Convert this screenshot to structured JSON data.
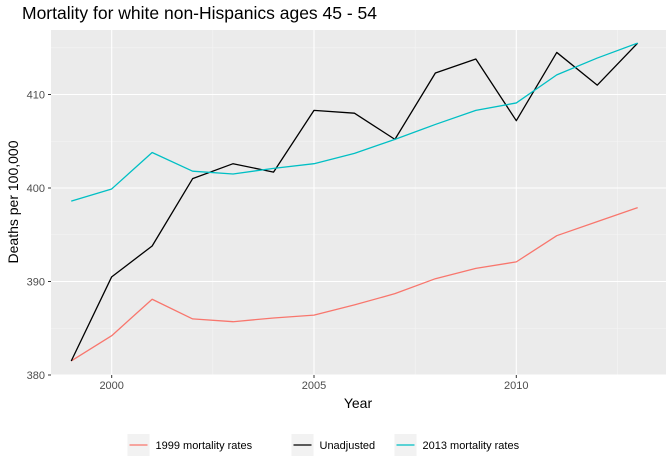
{
  "chart_data": {
    "type": "line",
    "title": "Mortality for white non-Hispanics ages 45 - 54",
    "xlabel": "Year",
    "ylabel": "Deaths per 100,000",
    "xlim": [
      1998.5,
      2013.7
    ],
    "ylim": [
      380,
      416.9
    ],
    "x_ticks": [
      2000,
      2005,
      2010
    ],
    "x_tick_labels": [
      "2000",
      "2005",
      "2010"
    ],
    "y_ticks": [
      380,
      390,
      400,
      410
    ],
    "y_tick_labels": [
      "380",
      "390",
      "400",
      "410"
    ],
    "grid": true,
    "legend_position": "bottom",
    "x": [
      1999,
      2000,
      2001,
      2002,
      2003,
      2004,
      2005,
      2006,
      2007,
      2008,
      2009,
      2010,
      2011,
      2012,
      2013
    ],
    "series": [
      {
        "name": "1999 mortality rates",
        "color": "#F8766D",
        "values": [
          381.5,
          384.2,
          388.1,
          386.0,
          385.7,
          386.1,
          386.4,
          387.5,
          388.7,
          390.3,
          391.4,
          392.1,
          394.9,
          396.4,
          397.9
        ]
      },
      {
        "name": "Unadjusted",
        "color": "#000000",
        "values": [
          381.5,
          390.5,
          393.8,
          401.0,
          402.6,
          401.7,
          408.3,
          408.0,
          405.2,
          412.3,
          413.8,
          407.2,
          414.5,
          411.0,
          415.5
        ]
      },
      {
        "name": "2013 mortality rates",
        "color": "#00BFC4",
        "values": [
          398.6,
          399.9,
          403.8,
          401.8,
          401.5,
          402.1,
          402.6,
          403.7,
          405.2,
          406.8,
          408.3,
          409.1,
          412.1,
          413.9,
          415.5
        ]
      }
    ]
  }
}
